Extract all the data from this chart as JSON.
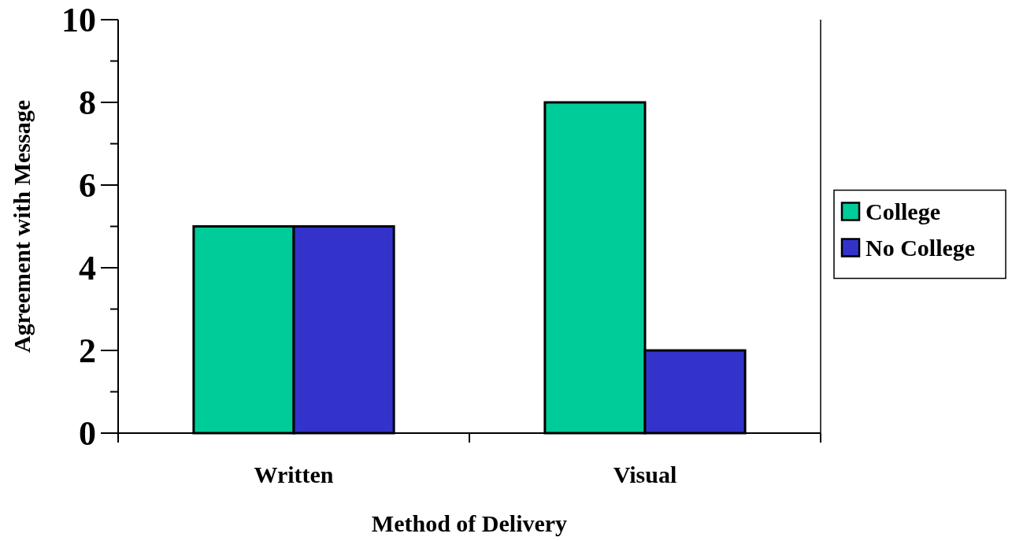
{
  "chart_data": {
    "type": "bar",
    "xlabel": "Method of Delivery",
    "ylabel": "Agreement with Message",
    "categories": [
      "Written",
      "Visual"
    ],
    "series": [
      {
        "name": "College",
        "color": "#00cc99",
        "values": [
          5,
          8
        ]
      },
      {
        "name": "No College",
        "color": "#3333cc",
        "values": [
          5,
          2
        ]
      }
    ],
    "ylim": [
      0,
      10
    ],
    "yticks": [
      0,
      {
        "value": 1,
        "label": null
      },
      2,
      {
        "value": 3,
        "label": null
      },
      4,
      {
        "value": 5,
        "label": null
      },
      6,
      {
        "value": 7,
        "label": null
      },
      8,
      {
        "value": 9,
        "label": null
      },
      10
    ],
    "grid": false,
    "legend": "right"
  }
}
